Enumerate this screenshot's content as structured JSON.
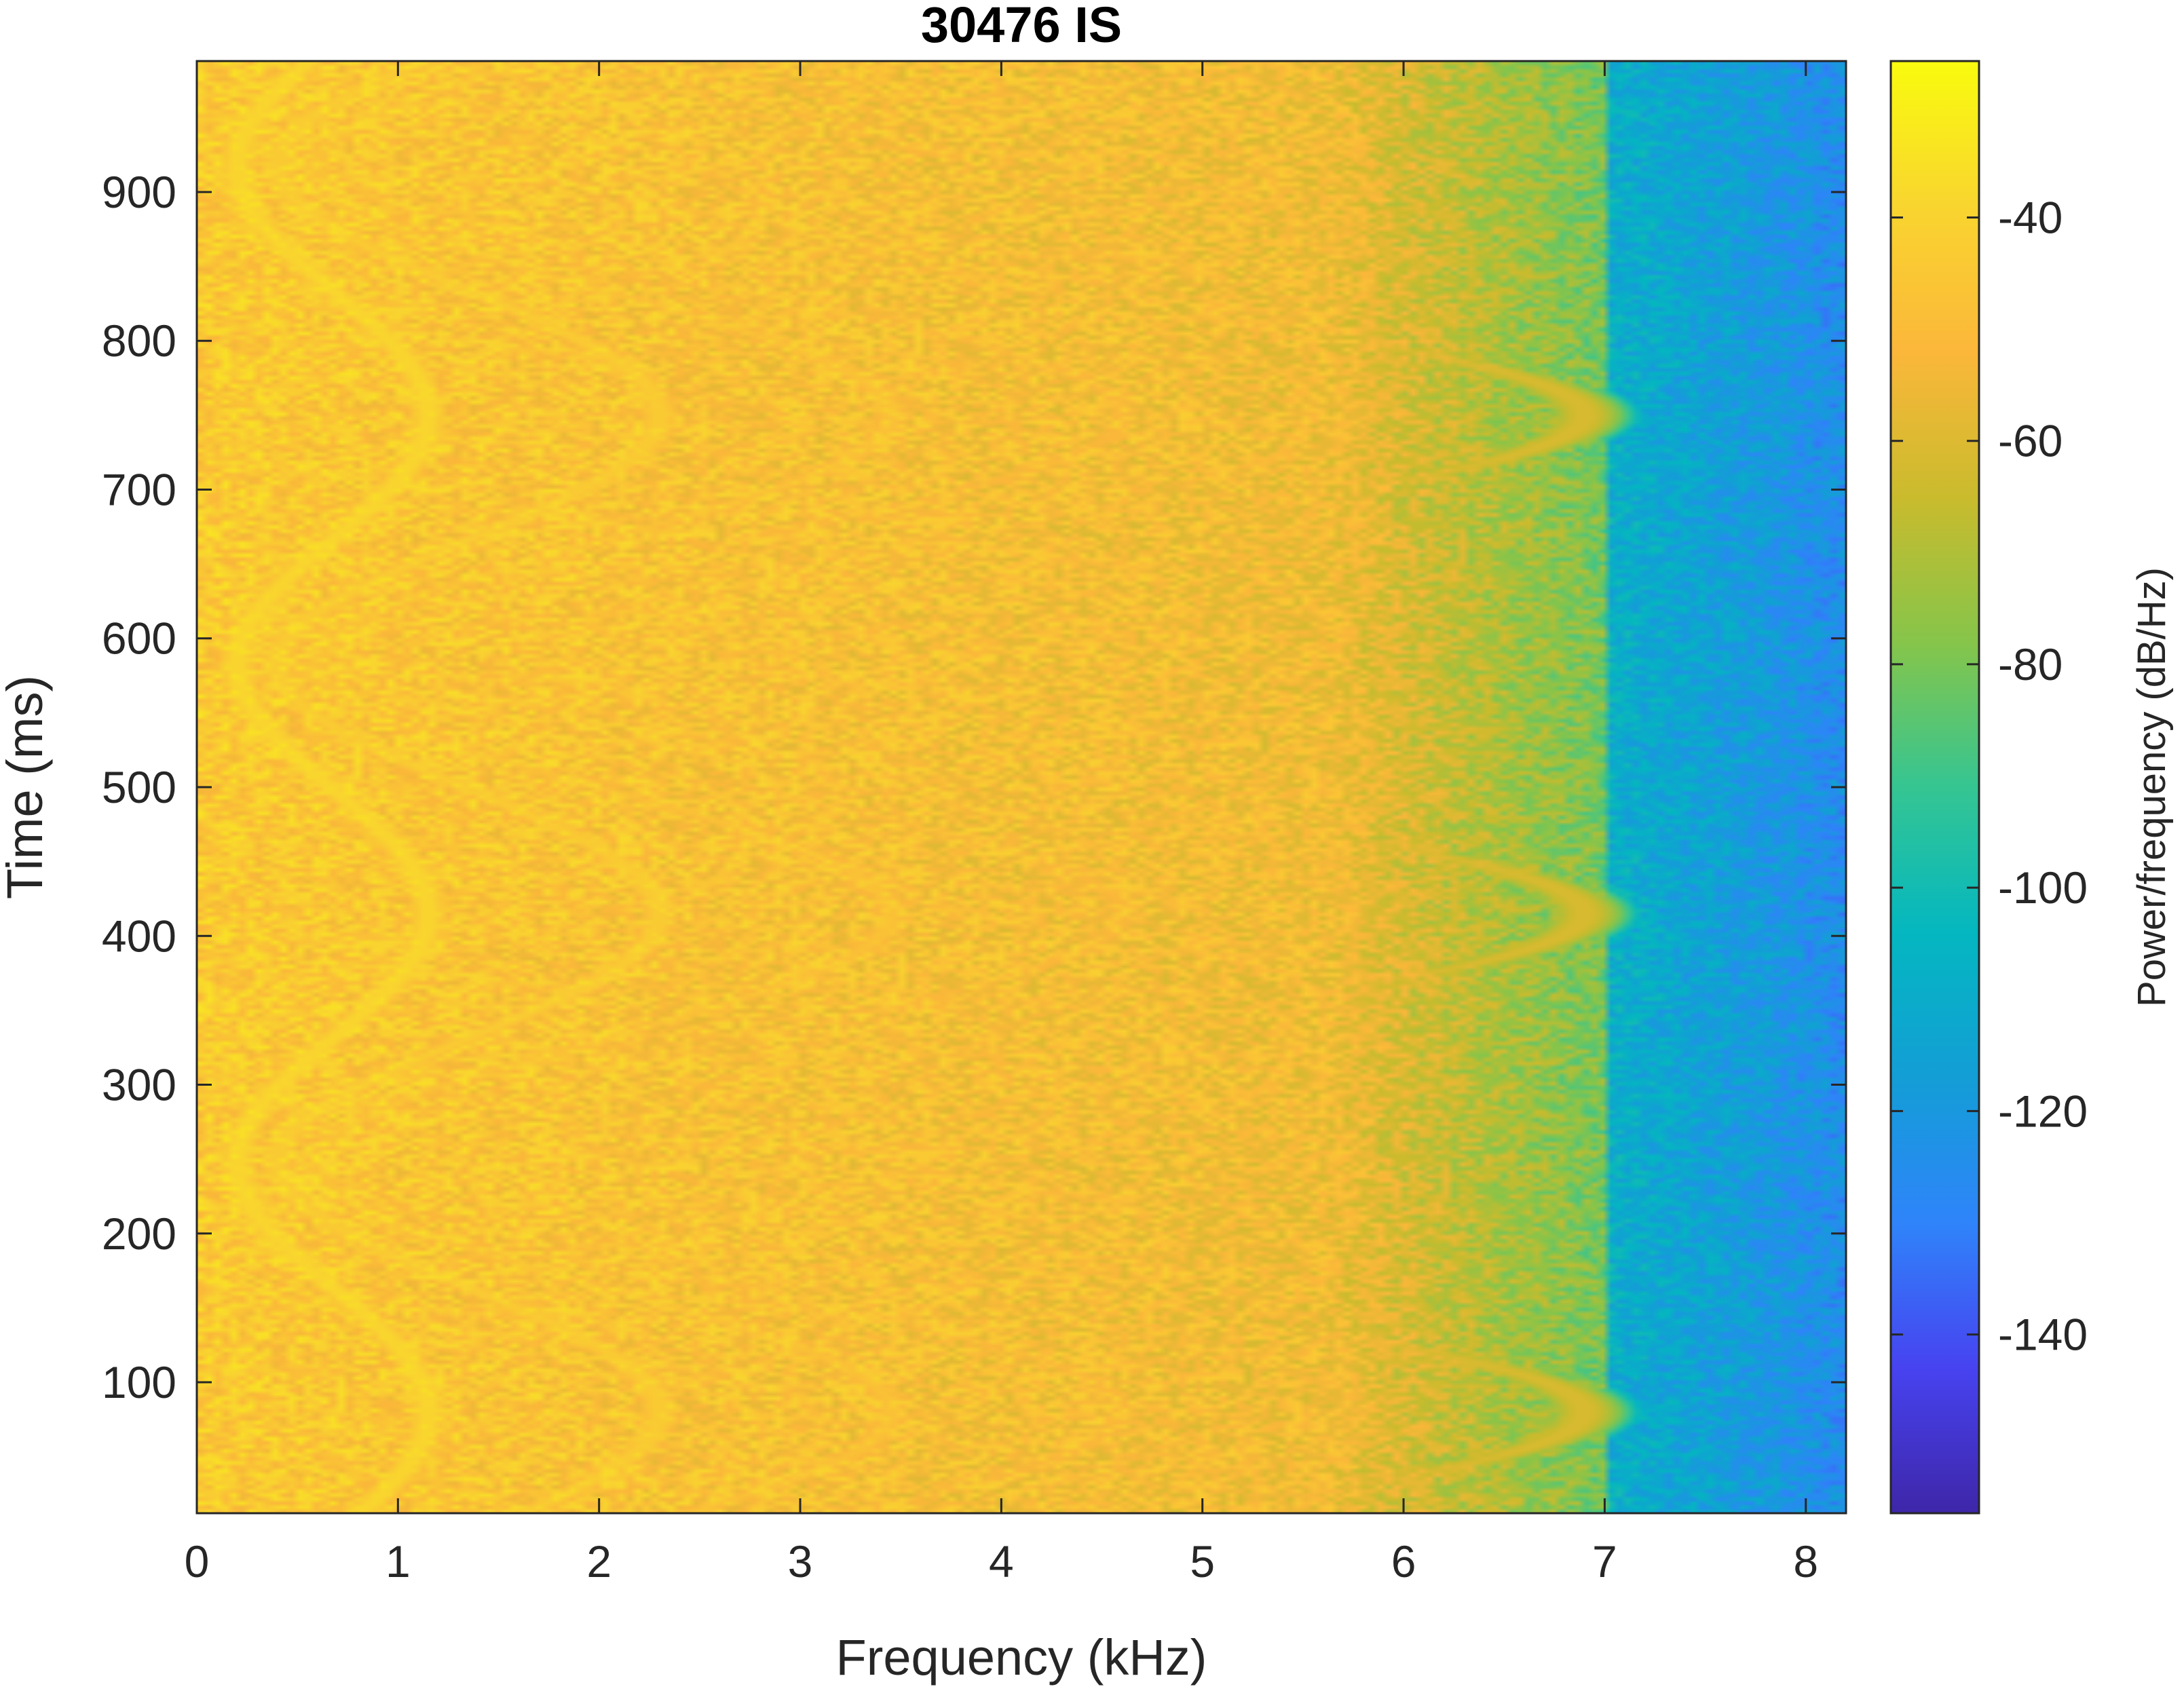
{
  "chart_data": {
    "type": "heatmap",
    "title": "30476 IS",
    "xlabel": "Frequency (kHz)",
    "ylabel": "Time (ms)",
    "xlim": [
      0,
      8.2
    ],
    "ylim": [
      12,
      988
    ],
    "xticks": [
      0,
      1,
      2,
      3,
      4,
      5,
      6,
      7,
      8
    ],
    "yticks": [
      100,
      200,
      300,
      400,
      500,
      600,
      700,
      800,
      900
    ],
    "colorbar": {
      "label": "Power/frequency (dB/Hz)",
      "range": [
        -156,
        -26
      ],
      "ticks": [
        -40,
        -60,
        -80,
        -100,
        -120,
        -140
      ],
      "colormap": "parula",
      "colors": [
        "#3e26a8",
        "#4743f0",
        "#2f84fa",
        "#139ed6",
        "#04b7c0",
        "#35c592",
        "#86c54a",
        "#cabb2d",
        "#fbb73a",
        "#f9d52f",
        "#f9fb0e"
      ]
    },
    "grid": false,
    "signal": {
      "description_values": "sinusoidally modulated harmonic series",
      "fundamental_min_khz": 0.2,
      "fundamental_max_khz": 1.15,
      "modulation_period_ms": 335,
      "max_peaks_ms": [
        80,
        415,
        750
      ],
      "min_peaks_ms": [
        250,
        585,
        920
      ],
      "harmonics": [
        1,
        2,
        3,
        4,
        5,
        6
      ],
      "noise_floor_rolloff_khz": 7.0
    }
  }
}
